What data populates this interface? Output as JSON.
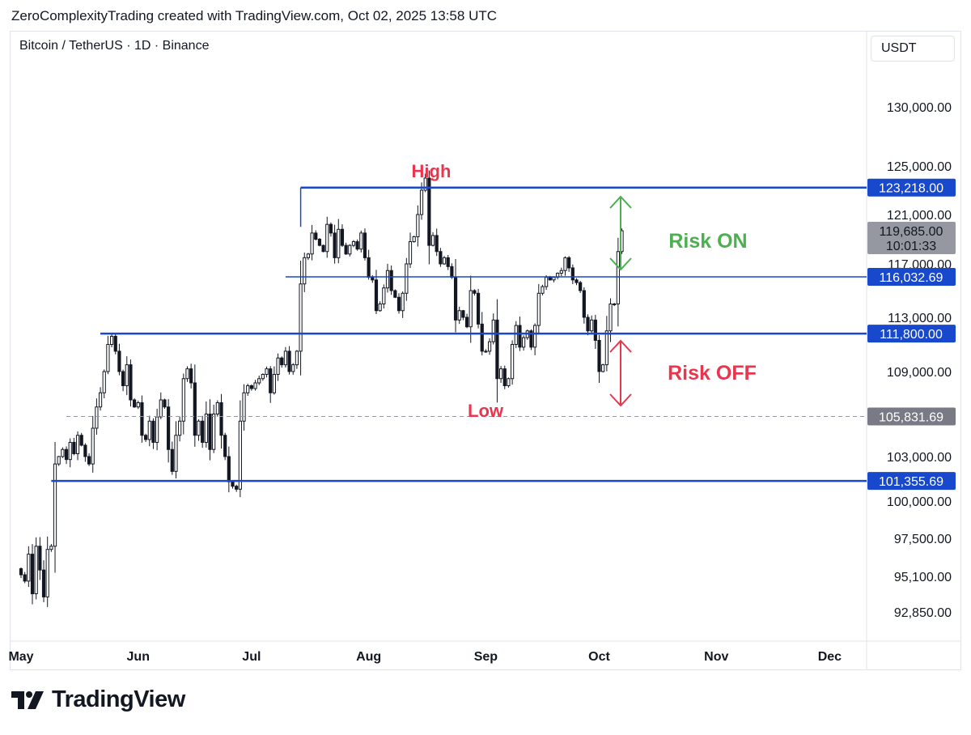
{
  "header": {
    "credit": "ZeroComplexityTrading created with TradingView.com, Oct 02, 2025 13:58 UTC"
  },
  "symbol": {
    "title": "Bitcoin / TetherUS · 1D · Binance"
  },
  "currency": {
    "label": "USDT"
  },
  "brand": {
    "name": "TradingView",
    "icon": "tradingview-logo-icon"
  },
  "colors": {
    "up": "#131722",
    "down": "#131722",
    "level": "#1848cc",
    "green": "#4caf50",
    "red": "#e8364f",
    "price_badge": "#9598a1",
    "gray_badge": "#787b86"
  },
  "chart_data": {
    "type": "candlestick",
    "title": "",
    "xlabel": "",
    "ylabel": "",
    "grid": false,
    "y_ticks": [
      "130,000.00",
      "125,000.00",
      "121,000.00",
      "117,000.00",
      "113,000.00",
      "109,000.00",
      "103,000.00",
      "100,000.00",
      "97,500.00",
      "95,100.00",
      "92,850.00"
    ],
    "x_ticks": [
      "May",
      "Jun",
      "Jul",
      "Aug",
      "Sep",
      "Oct",
      "Nov",
      "Dec"
    ],
    "levels": [
      {
        "value": 123218.0,
        "label": "123,218.00",
        "start": "Jul 14",
        "width": "thick"
      },
      {
        "value": 116032.69,
        "label": "116,032.69",
        "start": "Jul 10",
        "width": "thin"
      },
      {
        "value": 111800.0,
        "label": "111,800.00",
        "start": "May 22",
        "width": "thick"
      },
      {
        "value": 101355.69,
        "label": "101,355.69",
        "start": "May 9",
        "width": "thick"
      },
      {
        "value": 105831.69,
        "label": "105,831.69",
        "start": "May 13",
        "width": "dashed"
      }
    ],
    "last_price": {
      "value": 119685.0,
      "label": "119,685.00",
      "countdown": "10:01:33"
    },
    "annotations": [
      {
        "text": "High",
        "color": "red"
      },
      {
        "text": "Low",
        "color": "red"
      },
      {
        "text": "Risk ON",
        "color": "green"
      },
      {
        "text": "Risk OFF",
        "color": "red"
      }
    ],
    "close_path_start": "May 1",
    "close_path": [
      95200,
      94800,
      96500,
      94000,
      97000,
      95500,
      93800,
      96800,
      97000,
      102500,
      103000,
      103500,
      102800,
      104000,
      103200,
      104500,
      103800,
      103000,
      102500,
      105000,
      106500,
      107500,
      109000,
      111000,
      111600,
      110500,
      109000,
      108000,
      109500,
      107000,
      106500,
      106800,
      104500,
      104200,
      105500,
      104000,
      105800,
      107000,
      106500,
      103500,
      102000,
      104500,
      105500,
      108500,
      109200,
      108200,
      104500,
      105500,
      104000,
      106000,
      103500,
      106000,
      106800,
      104500,
      103000,
      101300,
      101000,
      100800,
      105500,
      107500,
      108000,
      107800,
      108200,
      108500,
      108800,
      109200,
      107500,
      108800,
      110000,
      109500,
      110500,
      109000,
      109500,
      110500,
      115500,
      117500,
      117800,
      119500,
      119000,
      118500,
      118000,
      120200,
      119500,
      117500,
      119800,
      118500,
      117800,
      118500,
      118800,
      118200,
      119500,
      117500,
      116000,
      115800,
      113500,
      114000,
      115200,
      116500,
      115000,
      114500,
      113500,
      114800,
      117000,
      118800,
      119200,
      121000,
      123000,
      124000,
      118500,
      119300,
      118000,
      117000,
      117500,
      116800,
      116000,
      112800,
      113500,
      113000,
      112300,
      115000,
      114800,
      112500,
      110500,
      110500,
      111200,
      112800,
      108500,
      109200,
      108000,
      108500,
      111000,
      112400,
      110800,
      111500,
      112000,
      110800,
      112400,
      114800,
      115300,
      116000,
      115800,
      116000,
      116300,
      116500,
      117500,
      116700,
      115800,
      115600,
      115000,
      113000,
      112000,
      112800,
      111300,
      109000,
      109500,
      112000,
      114000,
      114000,
      118000,
      119685
    ]
  }
}
